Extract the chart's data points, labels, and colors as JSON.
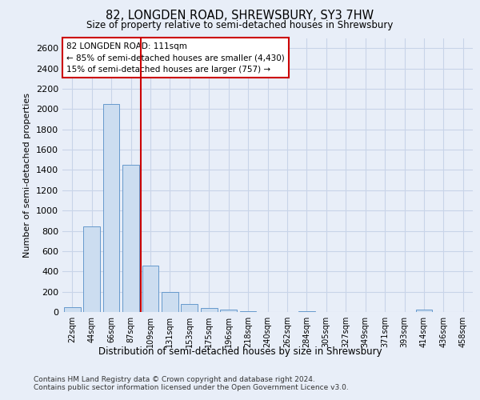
{
  "title1": "82, LONGDEN ROAD, SHREWSBURY, SY3 7HW",
  "title2": "Size of property relative to semi-detached houses in Shrewsbury",
  "xlabel": "Distribution of semi-detached houses by size in Shrewsbury",
  "ylabel": "Number of semi-detached properties",
  "categories": [
    "22sqm",
    "44sqm",
    "66sqm",
    "87sqm",
    "109sqm",
    "131sqm",
    "153sqm",
    "175sqm",
    "196sqm",
    "218sqm",
    "240sqm",
    "262sqm",
    "284sqm",
    "305sqm",
    "327sqm",
    "349sqm",
    "371sqm",
    "393sqm",
    "414sqm",
    "436sqm",
    "458sqm"
  ],
  "values": [
    50,
    840,
    2050,
    1450,
    460,
    195,
    80,
    40,
    20,
    5,
    0,
    0,
    5,
    0,
    0,
    0,
    0,
    0,
    20,
    0,
    0
  ],
  "bar_color": "#ccddf0",
  "bar_edge_color": "#6699cc",
  "vline_index": 3.5,
  "property_sqm": 111,
  "pct_smaller": 85,
  "count_smaller": 4430,
  "pct_larger": 15,
  "count_larger": 757,
  "annotation_box_color": "#ffffff",
  "annotation_box_edge": "#cc0000",
  "vline_color": "#cc0000",
  "grid_color": "#c8d4e8",
  "bg_color": "#e8eef8",
  "ylim": [
    0,
    2700
  ],
  "yticks": [
    0,
    200,
    400,
    600,
    800,
    1000,
    1200,
    1400,
    1600,
    1800,
    2000,
    2200,
    2400,
    2600
  ],
  "footer": "Contains HM Land Registry data © Crown copyright and database right 2024.\nContains public sector information licensed under the Open Government Licence v3.0."
}
